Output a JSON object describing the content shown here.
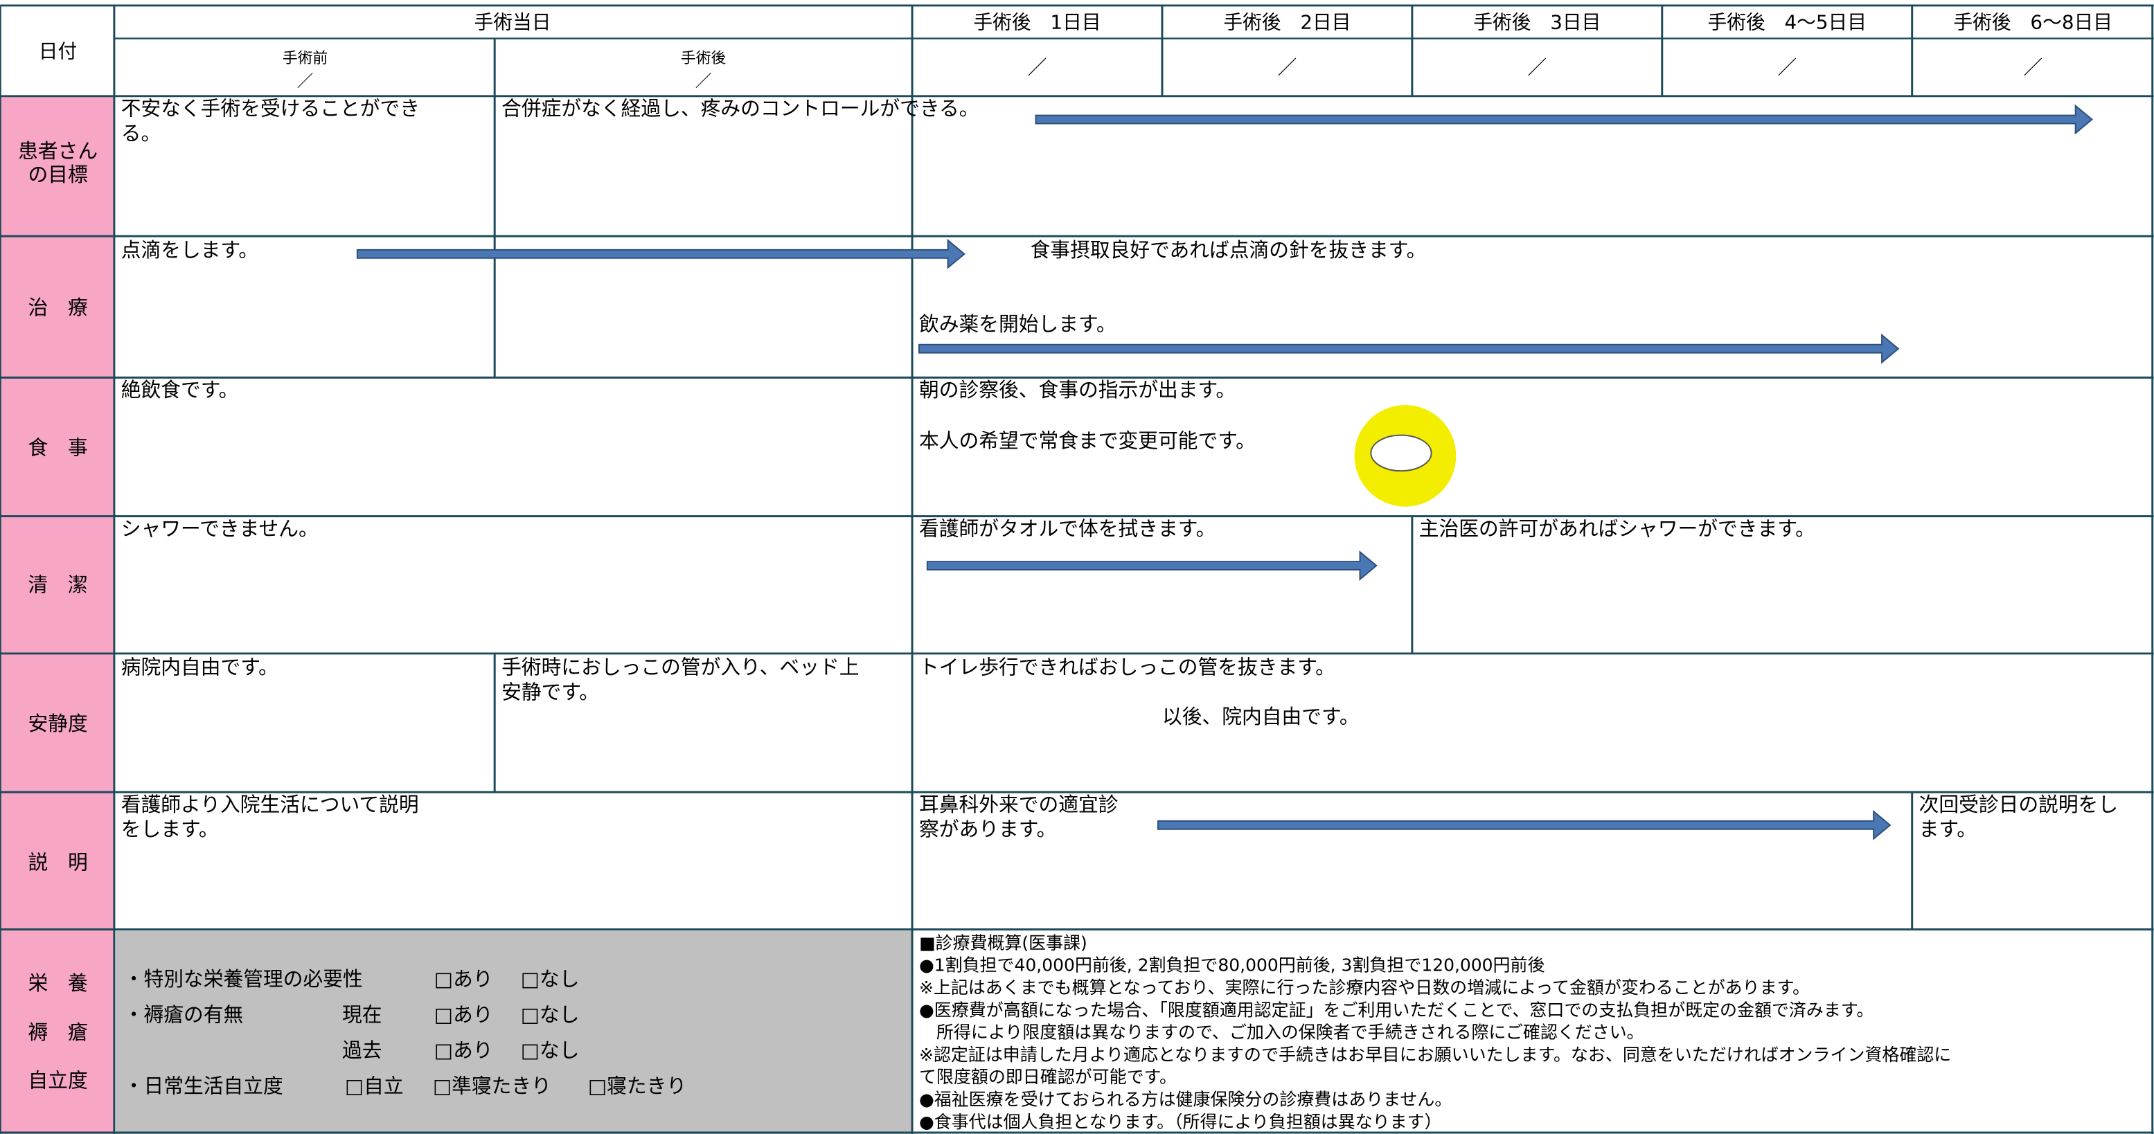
{
  "header": {
    "date_label": "日付",
    "surgery_day": "手術当日",
    "pre": "手術前",
    "post": "手術後",
    "days": [
      "手術後　1日目",
      "手術後　2日目",
      "手術後　3日目",
      "手術後　4〜5日目",
      "手術後　6〜8日目"
    ],
    "pre_slash": "／",
    "post_slash": "／",
    "day_slashes": [
      "／",
      "／",
      "／",
      "／",
      "／"
    ]
  },
  "rows": [
    {
      "label": [
        "患者さん",
        "の目標"
      ],
      "cells": [
        [
          "不安なく手術を受けることができ",
          "る。"
        ],
        [
          "合併症がなく経過し、疼みのコントロールができる。"
        ]
      ]
    },
    {
      "label": [
        "治　療"
      ],
      "cells": [
        [
          "点滴をします。"
        ],
        [
          "食事摂取良好であれば点滴の針を抜きます。"
        ],
        [
          "飲み薬を開始します。"
        ]
      ]
    },
    {
      "label": [
        "食　事"
      ],
      "cells": [
        [
          "絶飲食です。"
        ],
        [
          "朝の診察後、食事の指示が出ます。",
          "本人の希望で常食まで変更可能です。"
        ]
      ]
    },
    {
      "label": [
        "清　潔"
      ],
      "cells": [
        [
          "シャワーできません。"
        ],
        [
          "看護師がタオルで体を拭きます。"
        ],
        [
          "主治医の許可があればシャワーができます。"
        ]
      ]
    },
    {
      "label": [
        "安静度"
      ],
      "cells": [
        [
          "病院内自由です。"
        ],
        [
          "手術時におしっこの管が入り、ベッド上",
          "安静です。"
        ],
        [
          "トイレ歩行できればおしっこの管を抜きます。"
        ],
        [
          "以後、院内自由です。"
        ]
      ]
    },
    {
      "label": [
        "説　明"
      ],
      "cells": [
        [
          "看護師より入院生活について説明",
          "をします。"
        ],
        [
          "耳鼻科外来での適宜診",
          "察があります。"
        ],
        [
          "次回受診日の説明をし",
          "ます。"
        ]
      ]
    }
  ],
  "assessment": {
    "labels": [
      "栄　養",
      "褥　瘡",
      "自立度"
    ],
    "items": [
      [
        "・特別な栄養管理の必要性",
        "□あり",
        "□なし"
      ],
      [
        "・褥瘡の有無",
        "現在",
        "□あり",
        "□なし"
      ],
      [
        "過去",
        "□あり",
        "□なし"
      ],
      [
        "・日常生活自立度",
        "□自立",
        "□準寝たきり",
        "□寝たきり"
      ]
    ]
  },
  "costs": [
    "■診療費概算(医事課)",
    "●1割負担で40,000円前後, 2割負担で80,000円前後, 3割負担で120,000円前後",
    "※上記はあくまでも概算となっており、実際に行った診療内容や日数の増減によって金額が変わることがあります。",
    "●医療費が高額になった場合、「限度額適用認定証」をご利用いただくことで、窓口での支払負担が既定の金額で済みます。",
    "　所得により限度額は異なりますので、ご加入の保険者で手続きされる際にご確認ください。",
    "※認定証は申請した月より適応となりますので手続きはお早目にお願いいたします。なお、同意をいただければオンライン資格確認に",
    "て限度額の即日確認が可能です。",
    "●福祉医療を受けておられる方は健康保険分の診療費はありません。",
    "●食事代は個人負担となります。（所得により負担額は異なります）"
  ]
}
